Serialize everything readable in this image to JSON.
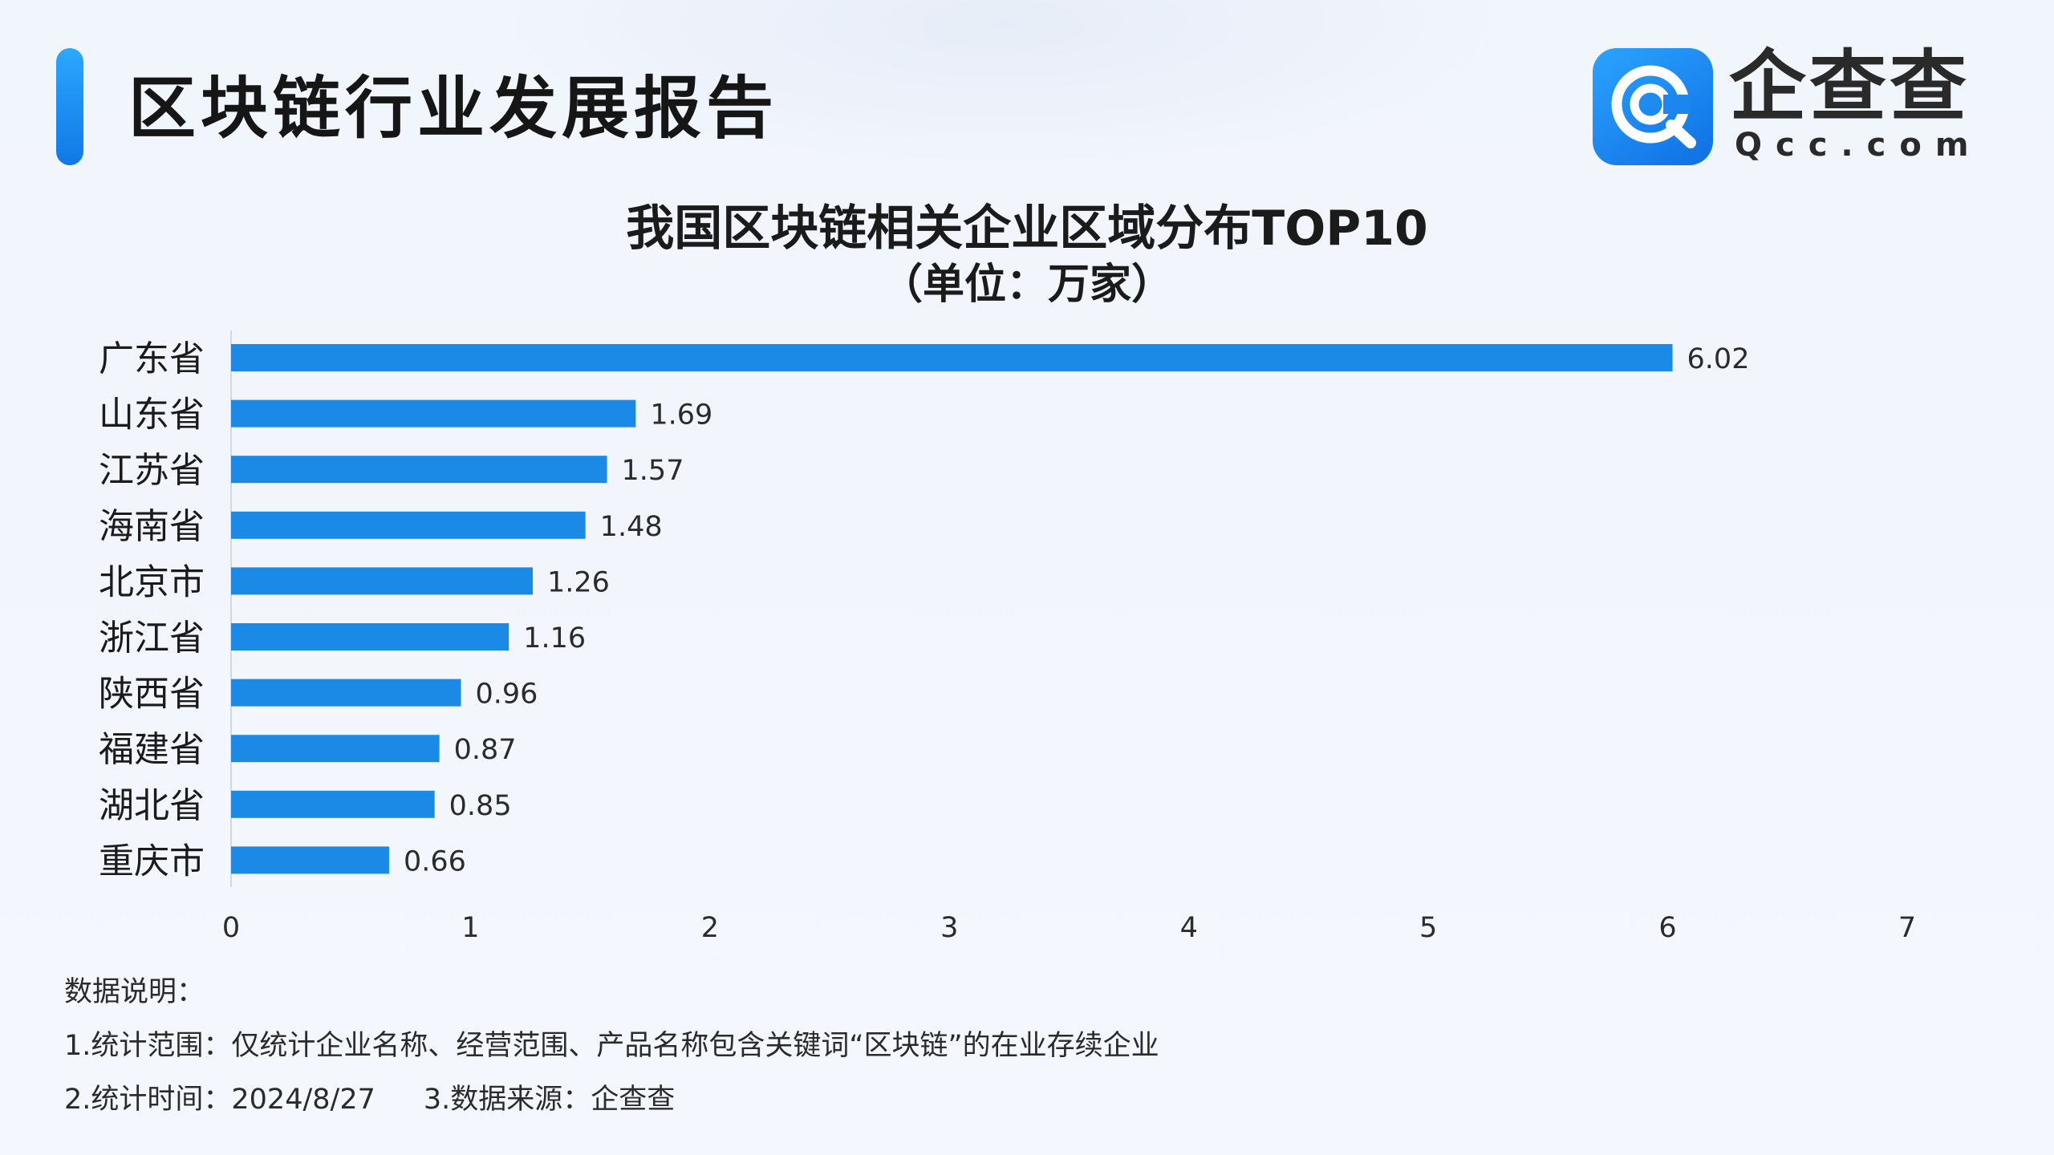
{
  "header": {
    "report_title": "区块链行业发展报告",
    "brand_name": "企查查",
    "brand_domain": "Qcc.com"
  },
  "colors": {
    "bar": "#1a8ae6",
    "accent": "#1890f5",
    "text": "#1b1b1b"
  },
  "chart_data": {
    "type": "bar",
    "orientation": "horizontal",
    "title": "我国区块链相关企业区域分布TOP10",
    "subtitle": "（单位：万家）",
    "categories": [
      "广东省",
      "山东省",
      "江苏省",
      "海南省",
      "北京市",
      "浙江省",
      "陕西省",
      "福建省",
      "湖北省",
      "重庆市"
    ],
    "values": [
      6.02,
      1.69,
      1.57,
      1.48,
      1.26,
      1.16,
      0.96,
      0.87,
      0.85,
      0.66
    ],
    "value_labels": [
      "6.02",
      "1.69",
      "1.57",
      "1.48",
      "1.26",
      "1.16",
      "0.96",
      "0.87",
      "0.85",
      "0.66"
    ],
    "xlim": [
      0,
      7
    ],
    "xticks": [
      "0",
      "1",
      "2",
      "3",
      "4",
      "5",
      "6",
      "7"
    ],
    "grid": false,
    "legend": "none"
  },
  "notes": {
    "heading": "数据说明：",
    "line1": "1.统计范围：仅统计企业名称、经营范围、产品名称包含关键词“区块链”的在业存续企业",
    "line2a": "2.统计时间：2024/8/27",
    "line2b": "3.数据来源：企查查"
  }
}
